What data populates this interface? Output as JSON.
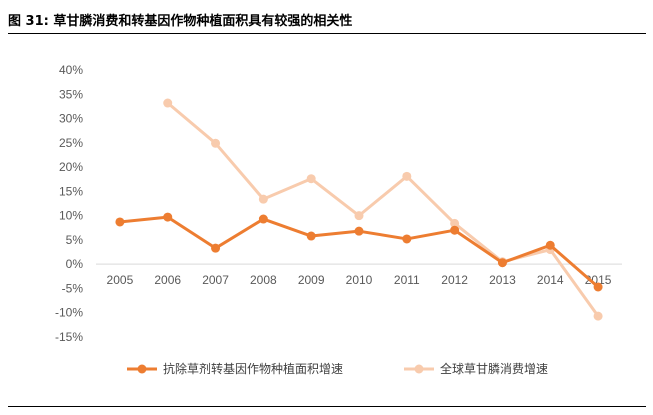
{
  "figure": {
    "title": "图 31: 草甘膦消费和转基因作物种植面积具有较强的相关性"
  },
  "chart_data": {
    "type": "line",
    "title": "",
    "xlabel": "",
    "ylabel": "",
    "categories": [
      "2005",
      "2006",
      "2007",
      "2008",
      "2009",
      "2010",
      "2011",
      "2012",
      "2013",
      "2014",
      "2015"
    ],
    "ylim": [
      -0.15,
      0.4
    ],
    "yticks": [
      0.4,
      0.35,
      0.3,
      0.25,
      0.2,
      0.15,
      0.1,
      0.05,
      0.0,
      -0.05,
      -0.1,
      -0.15
    ],
    "ytick_labels": [
      "40%",
      "35%",
      "30%",
      "25%",
      "20%",
      "15%",
      "10%",
      "5%",
      "0%",
      "-5%",
      "-10%",
      "-15%"
    ],
    "grid": false,
    "legend_position": "bottom",
    "series": [
      {
        "name": "抗除草剂转基因作物种植面积增速",
        "color": "#ED7D31",
        "values": [
          0.087,
          0.097,
          0.033,
          0.093,
          0.058,
          0.068,
          0.052,
          0.07,
          0.003,
          0.039,
          -0.047
        ]
      },
      {
        "name": "全球草甘膦消费增速",
        "color": "#F8CBAD",
        "values": [
          null,
          0.332,
          0.249,
          0.134,
          0.176,
          0.1,
          0.181,
          0.084,
          0.005,
          0.03,
          -0.107
        ]
      }
    ]
  }
}
